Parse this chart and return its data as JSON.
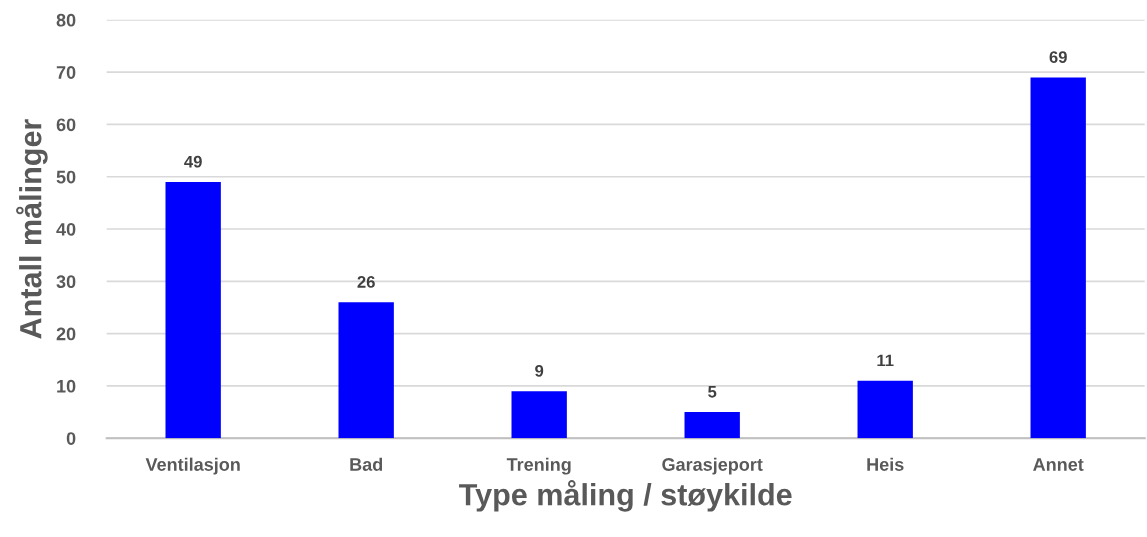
{
  "chart_data": {
    "type": "bar",
    "xlabel": "Type måling / støykilde",
    "ylabel": "Antall målinger",
    "categories": [
      "Ventilasjon",
      "Bad",
      "Trening",
      "Garasjeport",
      "Heis",
      "Annet"
    ],
    "values": [
      49,
      26,
      9,
      5,
      11,
      69
    ],
    "color": "#0000ff",
    "ylim": [
      0,
      80
    ],
    "yticks": [
      0,
      10,
      20,
      30,
      40,
      50,
      60,
      70,
      80
    ],
    "grid": "y",
    "data_labels": true
  }
}
